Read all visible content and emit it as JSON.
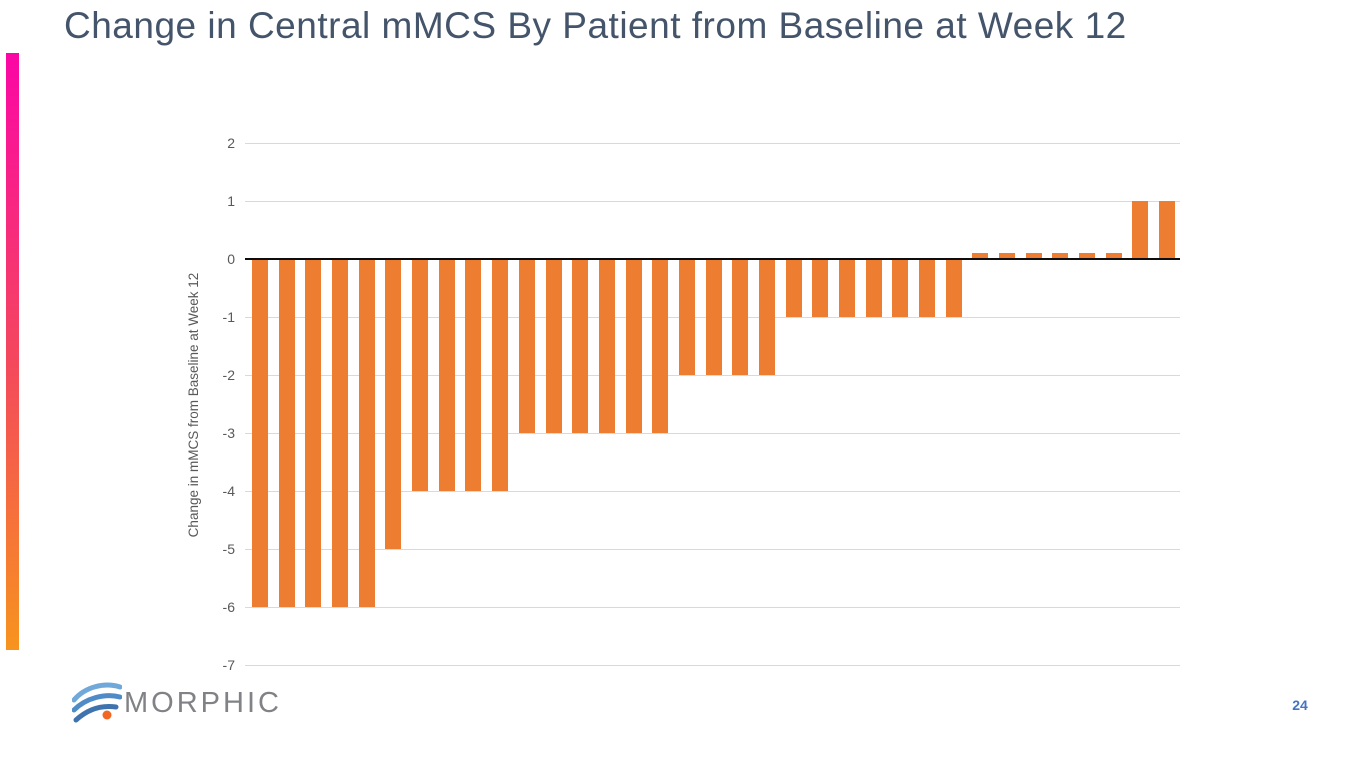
{
  "slide": {
    "title": "Change in Central mMCS By Patient from Baseline at Week 12",
    "title_color": "#44546A",
    "page_number": "24",
    "logo_text": "MORPHIC",
    "accent_bar_gradient": [
      "#FB06A5",
      "#F4485C",
      "#F7941E"
    ]
  },
  "chart_data": {
    "type": "bar",
    "title": "",
    "xlabel": "",
    "ylabel": "Change in mMCS from Baseline at Week 12",
    "ylim": [
      -7,
      2
    ],
    "yticks": [
      2,
      1,
      0,
      -1,
      -2,
      -3,
      -4,
      -5,
      -6,
      -7
    ],
    "grid": true,
    "legend": false,
    "bar_color": "#ED7D31",
    "gridline_color": "#D9D9D9",
    "zero_line_color": "#0d0d0d",
    "tick_label_color": "#595959",
    "n_bars": 35,
    "values": [
      -6,
      -6,
      -6,
      -6,
      -6,
      -5,
      -4,
      -4,
      -4,
      -4,
      -3,
      -3,
      -3,
      -3,
      -3,
      -3,
      -2,
      -2,
      -2,
      -2,
      -1,
      -1,
      -1,
      -1,
      -1,
      -1,
      -1,
      0,
      0,
      0,
      0,
      0,
      0,
      1,
      1
    ],
    "value_summary": {
      "-6": 5,
      "-5": 1,
      "-4": 4,
      "-3": 6,
      "-2": 4,
      "-1": 7,
      "0": 6,
      "1": 2
    }
  }
}
